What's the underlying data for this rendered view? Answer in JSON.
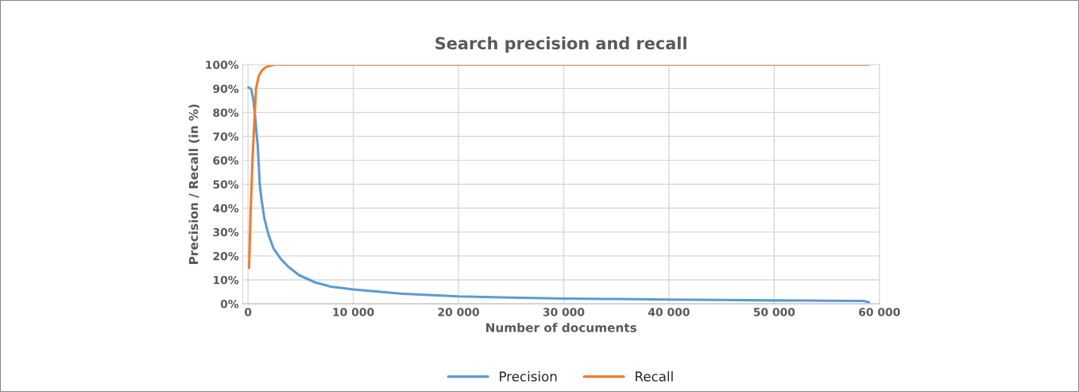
{
  "chart_data": {
    "type": "line",
    "title": "Search precision and recall",
    "xlabel": "Number of documents",
    "ylabel": "Precision / Recall (in %)",
    "xlim": [
      -500,
      60000
    ],
    "ylim": [
      0,
      100
    ],
    "xticks": [
      0,
      {
        "value": 10000,
        "label": "10 000"
      },
      {
        "value": 20000,
        "label": "20 000"
      },
      {
        "value": 30000,
        "label": "30 000"
      },
      {
        "value": 40000,
        "label": "40 000"
      },
      {
        "value": 50000,
        "label": "50 000"
      },
      {
        "value": 60000,
        "label": "60 000"
      }
    ],
    "yticks": [
      {
        "value": 0,
        "label": "0%"
      },
      {
        "value": 10,
        "label": "10%"
      },
      {
        "value": 20,
        "label": "20%"
      },
      {
        "value": 30,
        "label": "30%"
      },
      {
        "value": 40,
        "label": "40%"
      },
      {
        "value": 50,
        "label": "50%"
      },
      {
        "value": 60,
        "label": "60%"
      },
      {
        "value": 70,
        "label": "70%"
      },
      {
        "value": 80,
        "label": "80%"
      },
      {
        "value": 90,
        "label": "90%"
      },
      {
        "value": 100,
        "label": "100%"
      }
    ],
    "grid": true,
    "legend": "bottom",
    "marker": "none",
    "line_style": "solid",
    "series": [
      {
        "name": "Precision",
        "color": "#5b9bd5",
        "x": [
          50,
          300,
          500,
          680,
          930,
          1110,
          1300,
          1560,
          1940,
          2440,
          3070,
          3830,
          4840,
          6350,
          7860,
          10000,
          14700,
          20000,
          25000,
          30000,
          35000,
          40000,
          45000,
          50000,
          55000,
          58500,
          59000
        ],
        "values": [
          90.5,
          89.8,
          85.5,
          78,
          65.5,
          50,
          43,
          35.5,
          29,
          23,
          19,
          15.5,
          12,
          9,
          7.2,
          6,
          4.2,
          3.1,
          2.6,
          2.2,
          2,
          1.8,
          1.6,
          1.4,
          1.3,
          1.2,
          0.7
        ]
      },
      {
        "name": "Recall",
        "color": "#ed7d31",
        "x": [
          100,
          250,
          430,
          760,
          1000,
          1300,
          1700,
          2500,
          10000,
          30000,
          59000
        ],
        "values": [
          15,
          39,
          61,
          90,
          95,
          97.5,
          99,
          100,
          100,
          100,
          100
        ]
      }
    ]
  }
}
